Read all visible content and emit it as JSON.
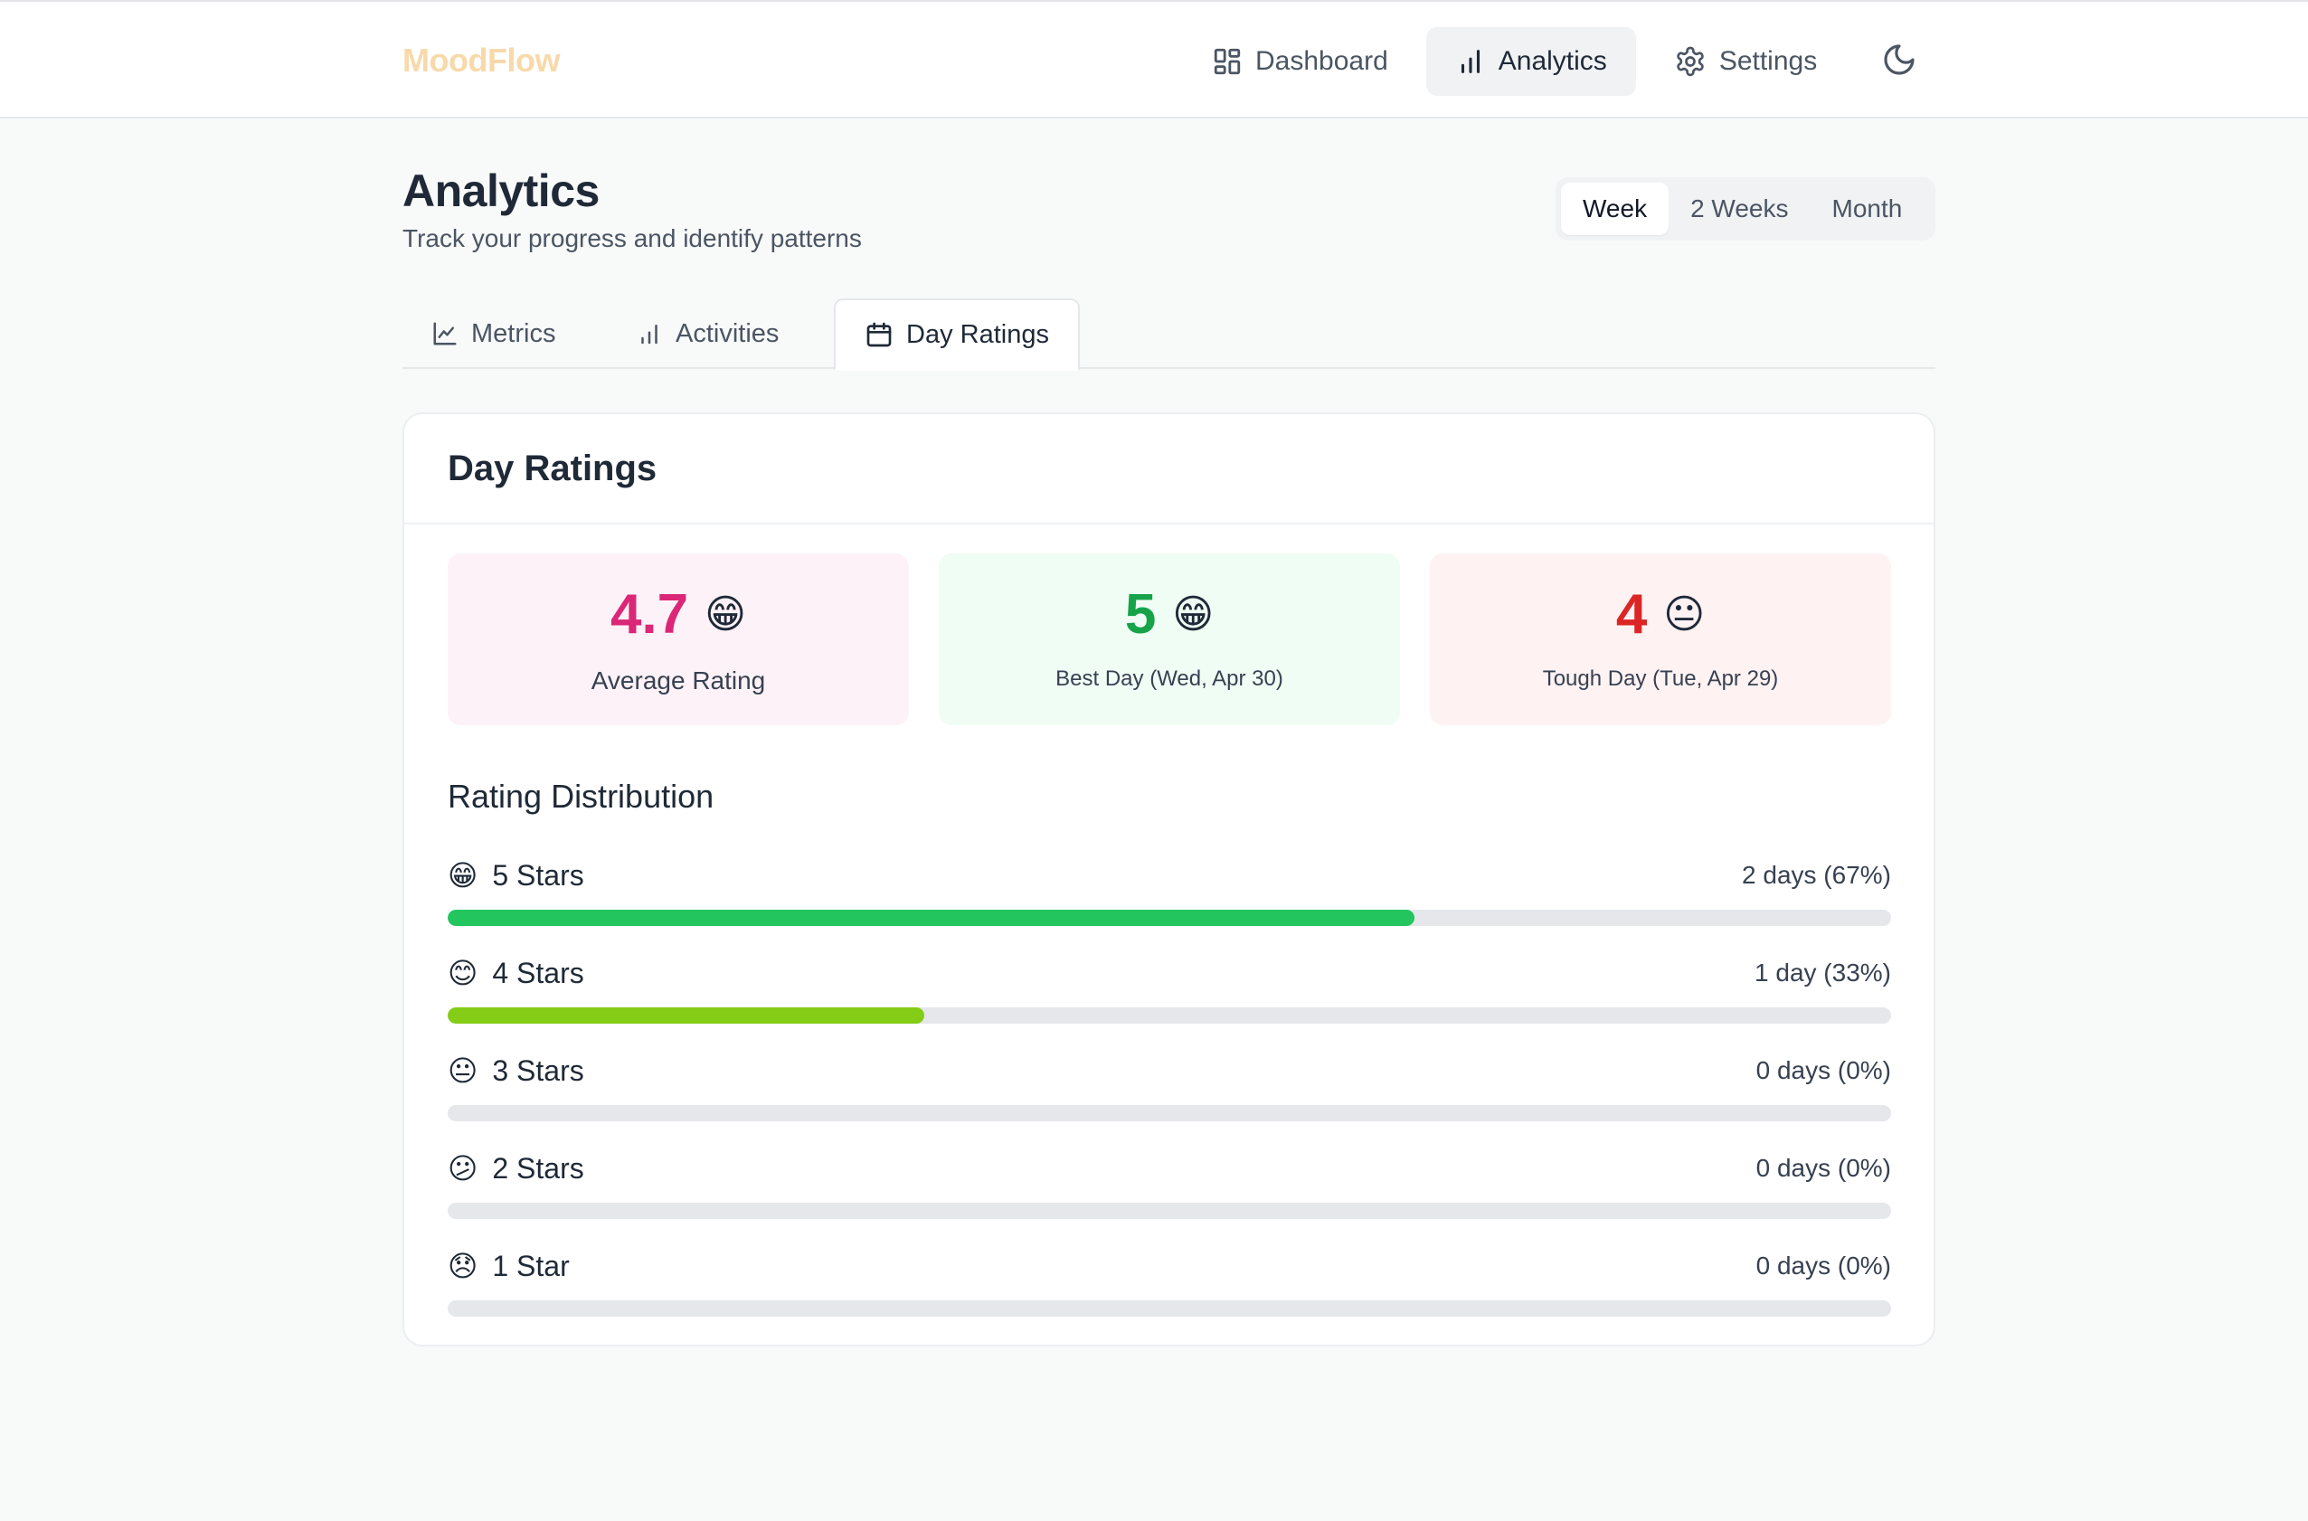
{
  "app": {
    "name": "MoodFlow"
  },
  "nav": {
    "items": [
      {
        "label": "Dashboard",
        "icon": "dashboard-icon",
        "active": false
      },
      {
        "label": "Analytics",
        "icon": "bar-chart-icon",
        "active": true
      },
      {
        "label": "Settings",
        "icon": "gear-icon",
        "active": false
      }
    ],
    "theme_toggle_icon": "moon-icon"
  },
  "page": {
    "title": "Analytics",
    "subtitle": "Track your progress and identify patterns"
  },
  "range": {
    "options": [
      "Week",
      "2 Weeks",
      "Month"
    ],
    "selected": "Week"
  },
  "tabs": [
    {
      "label": "Metrics",
      "icon": "line-chart-icon",
      "active": false
    },
    {
      "label": "Activities",
      "icon": "bar-chart-icon",
      "active": false
    },
    {
      "label": "Day Ratings",
      "icon": "calendar-icon",
      "active": true
    }
  ],
  "day_ratings": {
    "title": "Day Ratings",
    "stats": {
      "average": {
        "value": "4.7",
        "emoji": "😁",
        "label": "Average Rating",
        "color": "#db2777",
        "bg": "#fdf2f7"
      },
      "best": {
        "value": "5",
        "emoji": "😁",
        "label": "Best Day (Wed, Apr 30)",
        "color": "#16a34a",
        "bg": "#f0fdf4"
      },
      "tough": {
        "value": "4",
        "emoji": "😐",
        "label": "Tough Day (Tue, Apr 29)",
        "color": "#dc2626",
        "bg": "#fef2f2"
      }
    },
    "distribution_title": "Rating Distribution",
    "distribution": [
      {
        "emoji": "😁",
        "label": "5 Stars",
        "count": "2 days (67%)",
        "percent": 67,
        "color": "#22c55e"
      },
      {
        "emoji": "😊",
        "label": "4 Stars",
        "count": "1 day (33%)",
        "percent": 33,
        "color": "#84cc16"
      },
      {
        "emoji": "😐",
        "label": "3 Stars",
        "count": "0 days (0%)",
        "percent": 0,
        "color": "#eab308"
      },
      {
        "emoji": "😕",
        "label": "2 Stars",
        "count": "0 days (0%)",
        "percent": 0,
        "color": "#f97316"
      },
      {
        "emoji": "😞",
        "label": "1 Star",
        "count": "0 days (0%)",
        "percent": 0,
        "color": "#ef4444"
      }
    ]
  }
}
